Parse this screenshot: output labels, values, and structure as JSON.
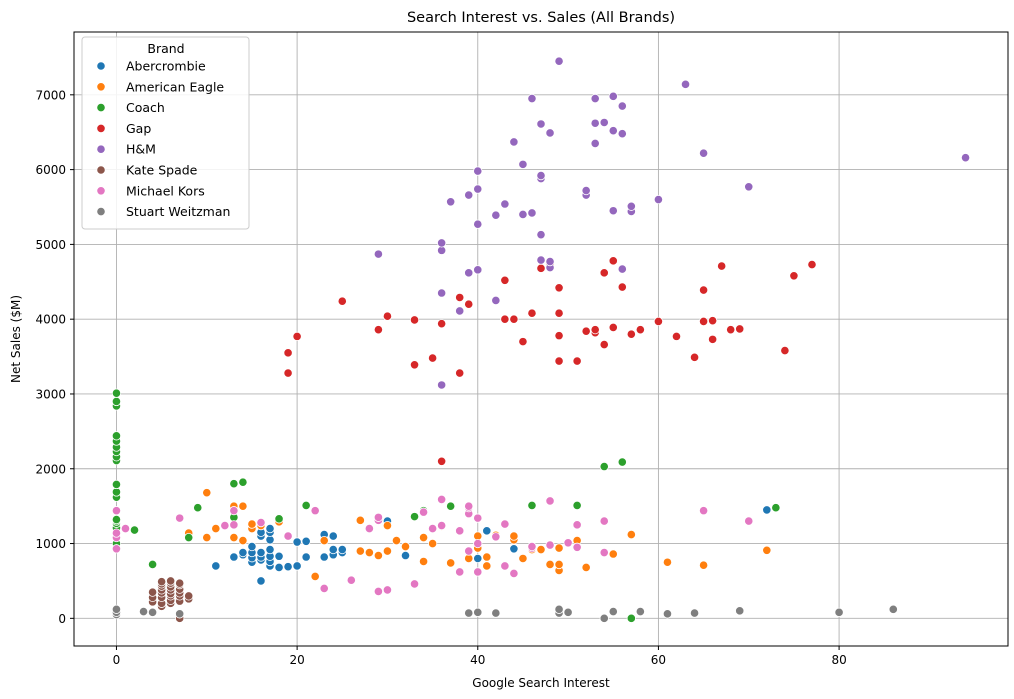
{
  "chart_data": {
    "type": "scatter",
    "title": "Search Interest vs. Sales (All Brands)",
    "xlabel": "Google Search Interest",
    "ylabel": "Net Sales ($M)",
    "xlim": [
      -4.7,
      98.7
    ],
    "ylim": [
      -370,
      7840
    ],
    "x_ticks": [
      0,
      20,
      40,
      60,
      80
    ],
    "y_ticks": [
      0,
      1000,
      2000,
      3000,
      4000,
      5000,
      6000,
      7000
    ],
    "grid": true,
    "legend": {
      "title": "Brand",
      "placement": "top-left"
    },
    "series": [
      {
        "name": "Abercrombie",
        "color": "#1f77b4",
        "points": [
          [
            11,
            700
          ],
          [
            13,
            820
          ],
          [
            14,
            850
          ],
          [
            14,
            880
          ],
          [
            15,
            750
          ],
          [
            15,
            810
          ],
          [
            15,
            880
          ],
          [
            15,
            960
          ],
          [
            16,
            500
          ],
          [
            16,
            780
          ],
          [
            16,
            820
          ],
          [
            16,
            880
          ],
          [
            16,
            1100
          ],
          [
            16,
            1150
          ],
          [
            17,
            700
          ],
          [
            17,
            760
          ],
          [
            17,
            830
          ],
          [
            17,
            920
          ],
          [
            17,
            1050
          ],
          [
            17,
            1150
          ],
          [
            17,
            1200
          ],
          [
            18,
            680
          ],
          [
            18,
            830
          ],
          [
            19,
            690
          ],
          [
            20,
            700
          ],
          [
            20,
            1020
          ],
          [
            21,
            820
          ],
          [
            21,
            1030
          ],
          [
            23,
            820
          ],
          [
            23,
            1120
          ],
          [
            24,
            850
          ],
          [
            24,
            920
          ],
          [
            24,
            1100
          ],
          [
            25,
            880
          ],
          [
            25,
            920
          ],
          [
            30,
            1300
          ],
          [
            32,
            840
          ],
          [
            40,
            800
          ],
          [
            41,
            1170
          ],
          [
            44,
            930
          ],
          [
            72,
            1450
          ]
        ]
      },
      {
        "name": "American Eagle",
        "color": "#ff7f0e",
        "points": [
          [
            8,
            1140
          ],
          [
            10,
            1080
          ],
          [
            10,
            1680
          ],
          [
            11,
            1200
          ],
          [
            13,
            1080
          ],
          [
            13,
            1250
          ],
          [
            13,
            1500
          ],
          [
            14,
            1040
          ],
          [
            14,
            1500
          ],
          [
            15,
            1200
          ],
          [
            15,
            1260
          ],
          [
            16,
            1240
          ],
          [
            18,
            1290
          ],
          [
            22,
            560
          ],
          [
            23,
            1040
          ],
          [
            27,
            900
          ],
          [
            27,
            1310
          ],
          [
            28,
            880
          ],
          [
            29,
            840
          ],
          [
            30,
            900
          ],
          [
            30,
            1240
          ],
          [
            31,
            1040
          ],
          [
            32,
            960
          ],
          [
            34,
            760
          ],
          [
            34,
            1080
          ],
          [
            35,
            1000
          ],
          [
            36,
            1230
          ],
          [
            37,
            740
          ],
          [
            39,
            800
          ],
          [
            40,
            940
          ],
          [
            40,
            1100
          ],
          [
            41,
            700
          ],
          [
            41,
            820
          ],
          [
            42,
            1110
          ],
          [
            44,
            1050
          ],
          [
            44,
            1100
          ],
          [
            45,
            800
          ],
          [
            46,
            920
          ],
          [
            47,
            920
          ],
          [
            48,
            720
          ],
          [
            49,
            640
          ],
          [
            49,
            720
          ],
          [
            49,
            940
          ],
          [
            51,
            1040
          ],
          [
            52,
            680
          ],
          [
            55,
            860
          ],
          [
            57,
            1120
          ],
          [
            61,
            750
          ],
          [
            65,
            710
          ],
          [
            72,
            910
          ]
        ]
      },
      {
        "name": "Coach",
        "color": "#2ca02c",
        "points": [
          [
            0,
            1000
          ],
          [
            0,
            1210
          ],
          [
            0,
            1270
          ],
          [
            0,
            1300
          ],
          [
            0,
            1320
          ],
          [
            0,
            1620
          ],
          [
            0,
            1690
          ],
          [
            0,
            1790
          ],
          [
            0,
            2110
          ],
          [
            0,
            2160
          ],
          [
            0,
            2230
          ],
          [
            0,
            2290
          ],
          [
            0,
            2370
          ],
          [
            0,
            2440
          ],
          [
            0,
            2840
          ],
          [
            0,
            2900
          ],
          [
            0,
            3010
          ],
          [
            2,
            1180
          ],
          [
            4,
            720
          ],
          [
            8,
            1080
          ],
          [
            9,
            1480
          ],
          [
            13,
            1350
          ],
          [
            13,
            1800
          ],
          [
            14,
            1820
          ],
          [
            18,
            1330
          ],
          [
            21,
            1510
          ],
          [
            33,
            1360
          ],
          [
            34,
            1440
          ],
          [
            37,
            1500
          ],
          [
            46,
            1510
          ],
          [
            51,
            1510
          ],
          [
            54,
            2030
          ],
          [
            56,
            2090
          ],
          [
            57,
            0
          ],
          [
            73,
            1480
          ]
        ]
      },
      {
        "name": "Gap",
        "color": "#d62728",
        "points": [
          [
            19,
            3280
          ],
          [
            19,
            3550
          ],
          [
            20,
            3770
          ],
          [
            25,
            4240
          ],
          [
            29,
            3860
          ],
          [
            30,
            4040
          ],
          [
            33,
            3390
          ],
          [
            33,
            3990
          ],
          [
            35,
            3480
          ],
          [
            36,
            2100
          ],
          [
            36,
            3940
          ],
          [
            38,
            3280
          ],
          [
            38,
            4290
          ],
          [
            39,
            4200
          ],
          [
            43,
            4000
          ],
          [
            43,
            4520
          ],
          [
            44,
            4000
          ],
          [
            45,
            3700
          ],
          [
            46,
            4080
          ],
          [
            47,
            4680
          ],
          [
            48,
            4730
          ],
          [
            49,
            3440
          ],
          [
            49,
            3780
          ],
          [
            49,
            4080
          ],
          [
            49,
            4420
          ],
          [
            51,
            3440
          ],
          [
            52,
            3840
          ],
          [
            53,
            3820
          ],
          [
            53,
            3860
          ],
          [
            54,
            3660
          ],
          [
            54,
            4620
          ],
          [
            55,
            3890
          ],
          [
            55,
            4780
          ],
          [
            56,
            4430
          ],
          [
            57,
            3800
          ],
          [
            58,
            3860
          ],
          [
            60,
            3970
          ],
          [
            62,
            3770
          ],
          [
            64,
            3490
          ],
          [
            65,
            3970
          ],
          [
            65,
            4390
          ],
          [
            66,
            3730
          ],
          [
            66,
            3980
          ],
          [
            67,
            4710
          ],
          [
            68,
            3860
          ],
          [
            69,
            3870
          ],
          [
            74,
            3580
          ],
          [
            75,
            4580
          ],
          [
            77,
            4730
          ]
        ]
      },
      {
        "name": "H&M",
        "color": "#9467bd",
        "points": [
          [
            29,
            4870
          ],
          [
            36,
            3120
          ],
          [
            36,
            4350
          ],
          [
            36,
            4920
          ],
          [
            36,
            5020
          ],
          [
            37,
            5570
          ],
          [
            38,
            4110
          ],
          [
            39,
            4620
          ],
          [
            39,
            5660
          ],
          [
            40,
            4660
          ],
          [
            40,
            5270
          ],
          [
            40,
            5740
          ],
          [
            40,
            5980
          ],
          [
            42,
            4250
          ],
          [
            42,
            5390
          ],
          [
            43,
            5540
          ],
          [
            44,
            6370
          ],
          [
            45,
            5400
          ],
          [
            45,
            6070
          ],
          [
            46,
            5420
          ],
          [
            46,
            6950
          ],
          [
            47,
            4790
          ],
          [
            47,
            5130
          ],
          [
            47,
            5880
          ],
          [
            47,
            5920
          ],
          [
            47,
            6610
          ],
          [
            48,
            4690
          ],
          [
            48,
            4770
          ],
          [
            48,
            6490
          ],
          [
            49,
            7450
          ],
          [
            52,
            5660
          ],
          [
            52,
            5720
          ],
          [
            53,
            6350
          ],
          [
            53,
            6620
          ],
          [
            53,
            6950
          ],
          [
            54,
            6630
          ],
          [
            55,
            5450
          ],
          [
            55,
            6520
          ],
          [
            55,
            6980
          ],
          [
            56,
            4670
          ],
          [
            56,
            6480
          ],
          [
            56,
            6850
          ],
          [
            57,
            5440
          ],
          [
            57,
            5510
          ],
          [
            60,
            5600
          ],
          [
            63,
            7140
          ],
          [
            65,
            6220
          ],
          [
            70,
            5770
          ],
          [
            94,
            6160
          ]
        ]
      },
      {
        "name": "Kate Spade",
        "color": "#8c564b",
        "points": [
          [
            4,
            220
          ],
          [
            4,
            280
          ],
          [
            4,
            350
          ],
          [
            5,
            160
          ],
          [
            5,
            200
          ],
          [
            5,
            280
          ],
          [
            5,
            340
          ],
          [
            5,
            380
          ],
          [
            5,
            430
          ],
          [
            5,
            460
          ],
          [
            5,
            490
          ],
          [
            6,
            200
          ],
          [
            6,
            240
          ],
          [
            6,
            300
          ],
          [
            6,
            330
          ],
          [
            6,
            380
          ],
          [
            6,
            420
          ],
          [
            6,
            470
          ],
          [
            6,
            500
          ],
          [
            7,
            0
          ],
          [
            7,
            230
          ],
          [
            7,
            300
          ],
          [
            7,
            340
          ],
          [
            7,
            390
          ],
          [
            7,
            450
          ],
          [
            7,
            470
          ],
          [
            8,
            260
          ],
          [
            8,
            300
          ]
        ]
      },
      {
        "name": "Michael Kors",
        "color": "#e377c2",
        "points": [
          [
            0,
            930
          ],
          [
            0,
            1080
          ],
          [
            0,
            1140
          ],
          [
            0,
            1440
          ],
          [
            1,
            1200
          ],
          [
            7,
            1340
          ],
          [
            12,
            1240
          ],
          [
            13,
            1250
          ],
          [
            13,
            1440
          ],
          [
            16,
            1280
          ],
          [
            19,
            1100
          ],
          [
            22,
            1440
          ],
          [
            23,
            400
          ],
          [
            26,
            510
          ],
          [
            28,
            1200
          ],
          [
            29,
            360
          ],
          [
            29,
            1310
          ],
          [
            29,
            1350
          ],
          [
            30,
            380
          ],
          [
            33,
            460
          ],
          [
            34,
            1420
          ],
          [
            35,
            1200
          ],
          [
            36,
            1240
          ],
          [
            36,
            1590
          ],
          [
            38,
            620
          ],
          [
            38,
            1170
          ],
          [
            39,
            900
          ],
          [
            39,
            1400
          ],
          [
            39,
            1480
          ],
          [
            39,
            1500
          ],
          [
            40,
            620
          ],
          [
            40,
            1000
          ],
          [
            40,
            1340
          ],
          [
            42,
            1090
          ],
          [
            43,
            700
          ],
          [
            43,
            1260
          ],
          [
            44,
            600
          ],
          [
            46,
            940
          ],
          [
            46,
            960
          ],
          [
            48,
            980
          ],
          [
            48,
            1570
          ],
          [
            50,
            1010
          ],
          [
            51,
            950
          ],
          [
            51,
            1250
          ],
          [
            54,
            880
          ],
          [
            54,
            1300
          ],
          [
            65,
            1440
          ],
          [
            70,
            1300
          ]
        ]
      },
      {
        "name": "Stuart Weitzman",
        "color": "#7f7f7f",
        "points": [
          [
            0,
            50
          ],
          [
            0,
            80
          ],
          [
            0,
            120
          ],
          [
            3,
            90
          ],
          [
            4,
            80
          ],
          [
            7,
            60
          ],
          [
            39,
            70
          ],
          [
            40,
            80
          ],
          [
            42,
            70
          ],
          [
            49,
            70
          ],
          [
            49,
            120
          ],
          [
            50,
            80
          ],
          [
            54,
            0
          ],
          [
            55,
            90
          ],
          [
            58,
            90
          ],
          [
            61,
            60
          ],
          [
            64,
            70
          ],
          [
            69,
            100
          ],
          [
            80,
            80
          ],
          [
            86,
            120
          ]
        ]
      }
    ]
  }
}
